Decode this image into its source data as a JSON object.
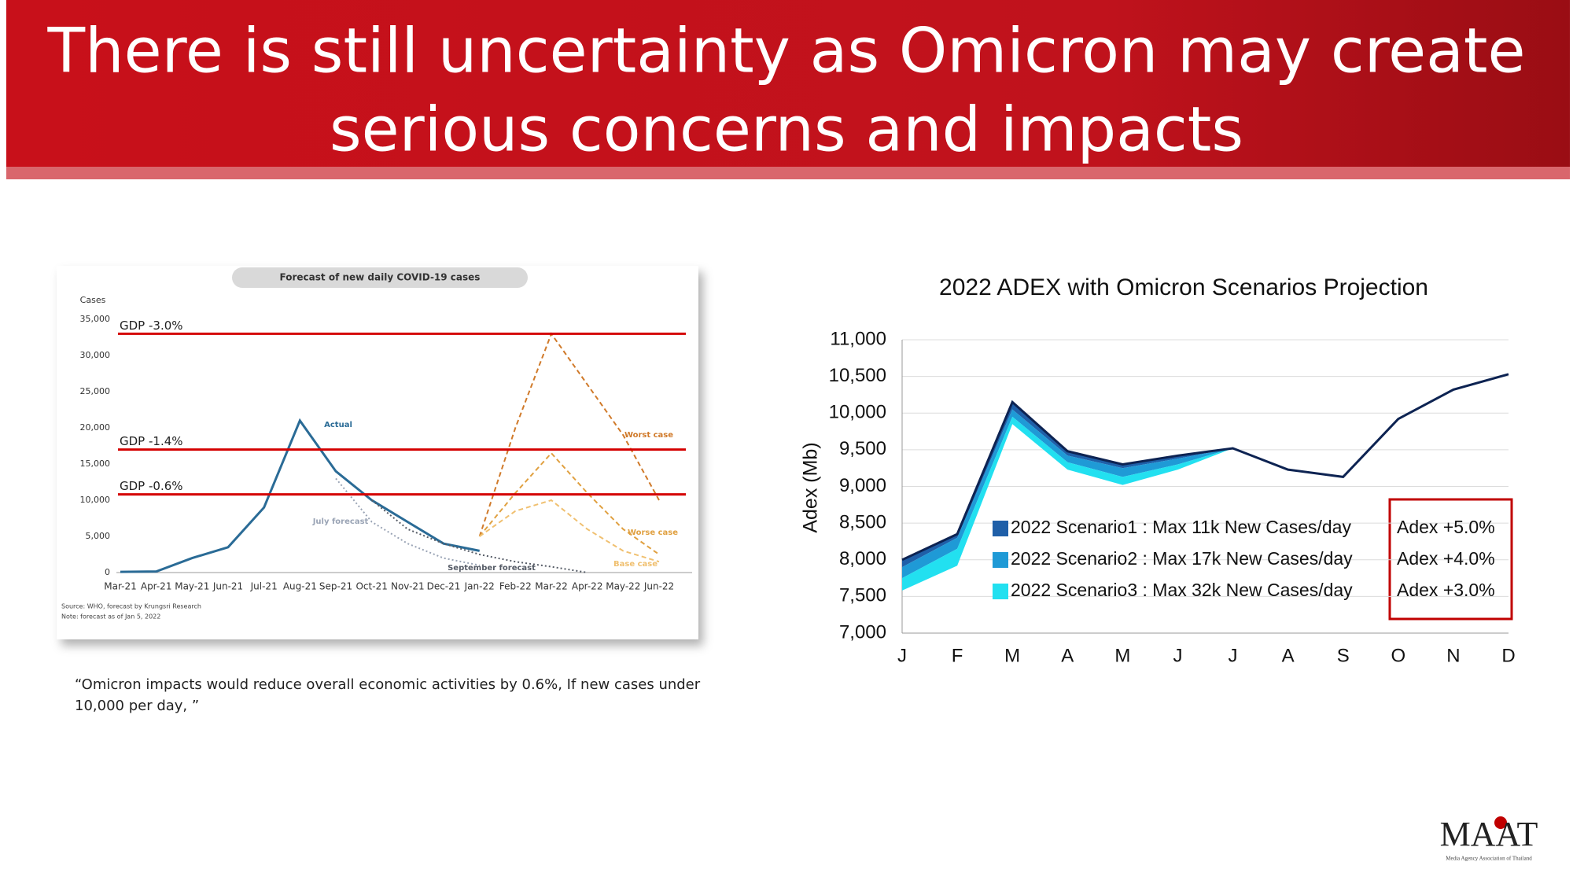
{
  "title": [
    "There is still uncertainty as Omicron may create",
    "serious concerns and impacts"
  ],
  "caption": [
    "“Omicron impacts would reduce overall economic activities by 0.6%, If new cases under",
    "10,000 per day, ”"
  ],
  "logo": "MAAT",
  "logo_sub": "Media Agency Association of Thailand",
  "chart_data": [
    {
      "type": "line",
      "title": "Forecast of new daily COVID-19 cases",
      "y_label": "Cases",
      "notes": [
        "Source: WHO, forecast by Krungsri Research",
        "Note: forecast as of Jan 5, 2022"
      ],
      "categories": [
        "Mar-21",
        "Apr-21",
        "May-21",
        "Jun-21",
        "Jul-21",
        "Aug-21",
        "Sep-21",
        "Oct-21",
        "Nov-21",
        "Dec-21",
        "Jan-22",
        "Feb-22",
        "Mar-22",
        "Apr-22",
        "May-22",
        "Jun-22"
      ],
      "ylim": [
        0,
        35000
      ],
      "yticks": [
        {
          "value": 0,
          "label": "0"
        },
        {
          "value": 5000,
          "label": "5,000"
        },
        {
          "value": 10000,
          "label": "10,000"
        },
        {
          "value": 15000,
          "label": "15,000"
        },
        {
          "value": 20000,
          "label": "20,000"
        },
        {
          "value": 25000,
          "label": "25,000"
        },
        {
          "value": 30000,
          "label": "30,000"
        },
        {
          "value": 35000,
          "label": "35,000"
        }
      ],
      "reference_lines": [
        {
          "label": "GDP -3.0%",
          "value": 33000,
          "color": "#d40000"
        },
        {
          "label": "GDP -1.4%",
          "value": 17000,
          "color": "#d40000"
        },
        {
          "label": "GDP -0.6%",
          "value": 10800,
          "color": "#d40000"
        }
      ],
      "series": [
        {
          "name": "Actual",
          "color": "#2a6b96",
          "style": "solid",
          "values": [
            100,
            150,
            2000,
            3500,
            9000,
            21000,
            14000,
            10000,
            7000,
            4000,
            3000,
            null,
            null,
            null,
            null,
            null
          ]
        },
        {
          "name": "July forecast",
          "color": "#9aa4b5",
          "style": "dotted",
          "values": [
            null,
            null,
            null,
            null,
            null,
            null,
            13000,
            7000,
            4000,
            2000,
            1000,
            null,
            null,
            null,
            null,
            null
          ]
        },
        {
          "name": "September forecast",
          "color": "#555b66",
          "style": "dotted",
          "values": [
            null,
            null,
            null,
            null,
            null,
            null,
            null,
            10000,
            6000,
            4000,
            2500,
            1500,
            800,
            0,
            null,
            null
          ]
        },
        {
          "name": "Worst case",
          "color": "#d07a2a",
          "style": "dashed",
          "values": [
            null,
            null,
            null,
            null,
            null,
            null,
            null,
            null,
            null,
            null,
            5000,
            20000,
            33000,
            26000,
            19000,
            10000
          ]
        },
        {
          "name": "Worse case",
          "color": "#e0a040",
          "style": "dashed",
          "values": [
            null,
            null,
            null,
            null,
            null,
            null,
            null,
            null,
            null,
            null,
            5000,
            11000,
            16500,
            11000,
            6000,
            2500
          ]
        },
        {
          "name": "Base case",
          "color": "#f0c070",
          "style": "dashed",
          "values": [
            null,
            null,
            null,
            null,
            null,
            null,
            null,
            null,
            null,
            null,
            5000,
            8500,
            10000,
            6000,
            3000,
            1500
          ]
        }
      ]
    },
    {
      "type": "area",
      "title": "2022 ADEX with Omicron Scenarios Projection",
      "y_label": "Adex (Mb)",
      "categories": [
        "J",
        "F",
        "M",
        "A",
        "M",
        "J",
        "J",
        "A",
        "S",
        "O",
        "N",
        "D"
      ],
      "ylim": [
        7000,
        11000
      ],
      "yticks": [
        {
          "value": 7000,
          "label": "7,000"
        },
        {
          "value": 7500,
          "label": "7,500"
        },
        {
          "value": 8000,
          "label": "8,000"
        },
        {
          "value": 8500,
          "label": "8,500"
        },
        {
          "value": 9000,
          "label": "9,000"
        },
        {
          "value": 9500,
          "label": "9,500"
        },
        {
          "value": 10000,
          "label": "10,000"
        },
        {
          "value": 10500,
          "label": "10,500"
        },
        {
          "value": 11000,
          "label": "11,000"
        }
      ],
      "grid": true,
      "series": [
        {
          "color": "#0d2352",
          "values": [
            8000,
            8350,
            10150,
            9480,
            9300,
            9420,
            9520,
            9230,
            9130,
            9920,
            10320,
            10530
          ]
        },
        {
          "name": "2022 Scenario1 : Max 11k New Cases/day",
          "note": "Adex +5.0%",
          "color": "#1f5fa8",
          "values": [
            7900,
            8300,
            10050,
            9420,
            9250,
            9380,
            9520,
            null,
            null,
            null,
            null,
            null
          ]
        },
        {
          "name": "2022 Scenario2 : Max 17k New Cases/day",
          "note": "Adex +4.0%",
          "color": "#1f9ad6",
          "values": [
            7750,
            8150,
            9950,
            9330,
            9130,
            9300,
            9520,
            null,
            null,
            null,
            null,
            null
          ]
        },
        {
          "name": "2022 Scenario3 : Max 32k New Cases/day",
          "note": "Adex +3.0%",
          "color": "#22e0f0",
          "values": [
            7580,
            7920,
            9850,
            9230,
            9020,
            9230,
            9520,
            null,
            null,
            null,
            null,
            null
          ]
        }
      ]
    }
  ]
}
